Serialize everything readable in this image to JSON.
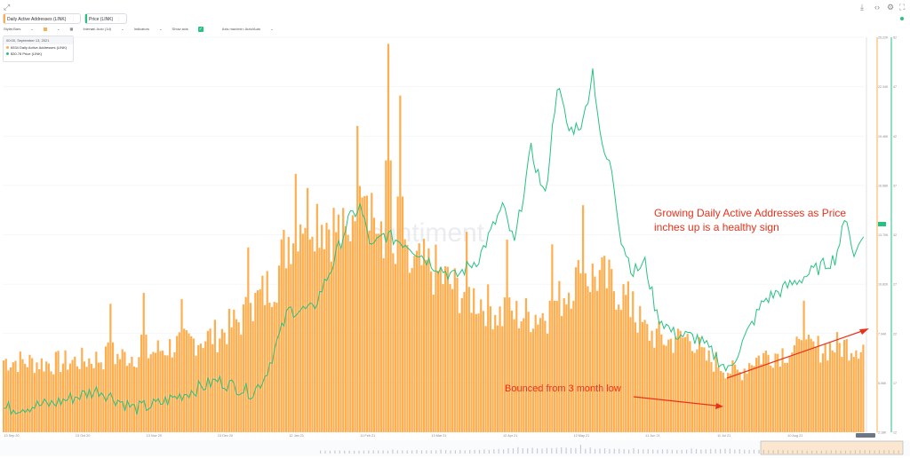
{
  "toolbar": {
    "expand_icon": "expand-icon",
    "right_icons": [
      "download-icon",
      "embed-code-icon",
      "settings-gear-icon",
      "fullscreen-icon"
    ],
    "status_color": "#26c281"
  },
  "metrics": [
    {
      "label": "Daily Active Addresses (LINK)",
      "color": "#ffad4d",
      "close": "×"
    },
    {
      "label": "Price (LINK)",
      "color": "#26c281",
      "close": "×"
    }
  ],
  "settings": {
    "style": "Style: Bars",
    "interval": "Interval: Auto (1d)",
    "indicators": "Indicators",
    "show_axis": "Show axis",
    "axis_max": "Axis max/min: Auto/Auto"
  },
  "tooltip": {
    "date": "00:00, September 13, 2021",
    "dau": "6534 Daily Active Addresses (LINK)",
    "price": "$30.78 Price (LINK)"
  },
  "watermark": "santiment",
  "annotations": {
    "growing": [
      "Growing Daily Active Addresses as Price",
      "inches up is a healthy sign"
    ],
    "bounced": "Bounced from 3 month low"
  },
  "chart_data": {
    "type": "bar",
    "x_ticks": [
      "13 Sep 20",
      "13 Oct 20",
      "13 Nov 20",
      "13 Dec 20",
      "12 Jan 21",
      "11 Feb 21",
      "13 Mar 21",
      "12 Apr 21",
      "12 May 21",
      "11 Jun 21",
      "11 Jul 21",
      "10 Aug 21"
    ],
    "dau_axis_ticks": [
      "2.18K",
      "5.06K",
      "7.94K",
      "10.82K",
      "13.70K",
      "16.58K",
      "19.46K",
      "22.34K",
      "25.22K"
    ],
    "price_axis_ticks": [
      "12",
      "17",
      "22",
      "27",
      "32",
      "37",
      "42",
      "47",
      "52"
    ],
    "series": [
      {
        "name": "Daily Active Addresses (LINK)",
        "type": "bar",
        "color": "#ffad4d",
        "anchors": [
          [
            0,
            4600
          ],
          [
            20,
            4400
          ],
          [
            40,
            4700
          ],
          [
            60,
            5000
          ],
          [
            75,
            5700
          ],
          [
            90,
            6200
          ],
          [
            100,
            7200
          ],
          [
            110,
            9000
          ],
          [
            115,
            10000
          ],
          [
            120,
            12500
          ],
          [
            125,
            14000
          ],
          [
            130,
            14200
          ],
          [
            140,
            13000
          ],
          [
            145,
            12000
          ],
          [
            150,
            18500
          ],
          [
            160,
            11000
          ],
          [
            170,
            10500
          ],
          [
            180,
            10500
          ],
          [
            190,
            9200
          ],
          [
            200,
            8500
          ],
          [
            210,
            7500
          ],
          [
            220,
            7500
          ],
          [
            230,
            7600
          ],
          [
            240,
            9700
          ],
          [
            250,
            10000
          ],
          [
            260,
            9000
          ],
          [
            270,
            6500
          ],
          [
            280,
            5800
          ],
          [
            290,
            6100
          ],
          [
            295,
            4700
          ],
          [
            300,
            4500
          ],
          [
            305,
            4000
          ],
          [
            310,
            3800
          ],
          [
            315,
            4600
          ],
          [
            320,
            4900
          ],
          [
            330,
            5200
          ],
          [
            340,
            5300
          ],
          [
            350,
            5500
          ],
          [
            362,
            5600
          ]
        ],
        "peaks": [
          [
            45,
            8200
          ],
          [
            59,
            8900
          ],
          [
            75,
            8500
          ],
          [
            103,
            11800
          ],
          [
            123,
            16500
          ],
          [
            162,
            24800
          ],
          [
            167,
            21500
          ],
          [
            195,
            12800
          ],
          [
            212,
            12300
          ],
          [
            231,
            12000
          ],
          [
            244,
            14500
          ],
          [
            265,
            9000
          ],
          [
            283,
            6100
          ],
          [
            337,
            8400
          ]
        ]
      },
      {
        "name": "Price (LINK)",
        "type": "line",
        "color": "#26c281",
        "anchors": [
          [
            0,
            12.5
          ],
          [
            20,
            13.0
          ],
          [
            40,
            14.5
          ],
          [
            55,
            12.5
          ],
          [
            65,
            13.0
          ],
          [
            90,
            15.5
          ],
          [
            105,
            14.2
          ],
          [
            110,
            16.0
          ],
          [
            120,
            23.0
          ],
          [
            130,
            23.0
          ],
          [
            138,
            27.5
          ],
          [
            145,
            32.5
          ],
          [
            150,
            34.0
          ],
          [
            155,
            29.5
          ],
          [
            160,
            31.0
          ],
          [
            170,
            30.0
          ],
          [
            180,
            28.0
          ],
          [
            190,
            26.5
          ],
          [
            200,
            28.5
          ],
          [
            210,
            34.0
          ],
          [
            215,
            30.0
          ],
          [
            222,
            40.0
          ],
          [
            228,
            35.0
          ],
          [
            233,
            47.0
          ],
          [
            238,
            42.0
          ],
          [
            244,
            43.0
          ],
          [
            248,
            48.5
          ],
          [
            252,
            40.0
          ],
          [
            256,
            38.0
          ],
          [
            260,
            30.5
          ],
          [
            265,
            27.0
          ],
          [
            270,
            28.0
          ],
          [
            275,
            22.5
          ],
          [
            282,
            20.5
          ],
          [
            292,
            20.0
          ],
          [
            300,
            18.0
          ],
          [
            305,
            16.5
          ],
          [
            310,
            19.0
          ],
          [
            320,
            24.0
          ],
          [
            330,
            25.5
          ],
          [
            340,
            27.0
          ],
          [
            350,
            28.5
          ],
          [
            355,
            33.0
          ],
          [
            358,
            28.5
          ],
          [
            362,
            31.5
          ]
        ]
      }
    ],
    "days": 363
  }
}
